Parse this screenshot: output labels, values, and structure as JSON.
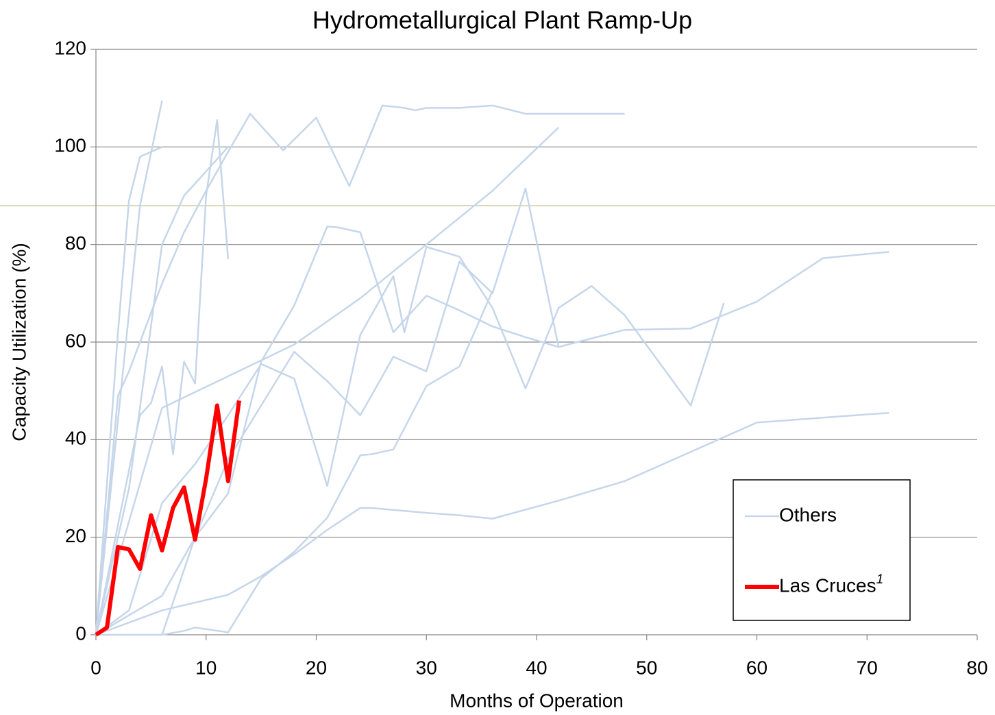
{
  "chart_data": {
    "type": "line",
    "title": "Hydrometallurgical Plant Ramp-Up",
    "x_label": "Months of Operation",
    "y_label": "Capacity Utilization (%)",
    "xlim": [
      0,
      80
    ],
    "xticks": [
      0,
      10,
      20,
      30,
      40,
      50,
      60,
      70,
      80
    ],
    "ylim": [
      0,
      120
    ],
    "yticks": [
      0,
      20,
      40,
      60,
      80,
      100,
      120
    ],
    "grid": true,
    "legend": "lower right",
    "series": [
      {
        "name": "Others",
        "color": "#c6d6ea",
        "x": [
          0,
          2,
          3,
          4,
          6,
          8,
          10,
          12,
          14,
          17,
          20,
          23,
          26,
          28,
          29,
          30,
          33,
          36,
          39,
          48,
          null,
          0,
          2,
          3,
          4,
          6,
          null,
          0,
          4,
          6,
          null,
          0,
          4,
          5,
          6,
          7,
          8,
          9,
          10,
          11,
          12,
          null,
          0,
          3,
          6,
          8,
          12,
          null,
          0,
          6,
          12,
          18,
          24,
          30,
          36,
          42,
          null,
          0,
          3,
          6,
          9,
          12,
          15,
          18,
          21,
          24,
          27,
          28,
          30,
          33,
          36,
          39,
          42,
          45,
          48,
          54,
          57,
          null,
          0,
          6,
          9,
          12,
          15,
          18,
          21,
          22,
          24,
          27,
          30,
          33,
          36,
          39,
          42,
          48,
          54,
          60,
          66,
          72,
          null,
          0,
          6,
          9,
          12,
          15,
          18,
          21,
          24,
          27,
          30,
          33,
          36,
          39,
          42,
          null,
          0,
          6,
          8,
          9,
          12,
          15,
          18,
          21,
          24,
          25,
          27,
          30,
          33,
          36,
          null,
          0,
          3,
          6,
          12,
          15,
          18,
          21,
          24,
          25,
          30,
          33,
          36,
          42,
          48,
          54,
          60,
          66,
          72
        ],
        "values": [
          0,
          49,
          54,
          60,
          72,
          82.5,
          91,
          99,
          106.8,
          99.3,
          106,
          92,
          108.5,
          108,
          107.5,
          108,
          108,
          108.5,
          106.8,
          106.8,
          null,
          0,
          62,
          89,
          98,
          100,
          null,
          0,
          88,
          109.5,
          null,
          0,
          45,
          47.5,
          55,
          37,
          56,
          51.5,
          90,
          105.5,
          77,
          null,
          0,
          30,
          80,
          90,
          100,
          null,
          0,
          46.5,
          53,
          59.5,
          69,
          80,
          91,
          104,
          null,
          0,
          5,
          27,
          35,
          45,
          55.5,
          52.5,
          30.5,
          61.5,
          73.5,
          62,
          79.5,
          77.5,
          67,
          50.5,
          67,
          71.5,
          65.5,
          47,
          68,
          null,
          0,
          8,
          20,
          29,
          56,
          67.5,
          83.7,
          83.5,
          82.5,
          62,
          69.5,
          66.5,
          63.2,
          61,
          59,
          62.5,
          62.8,
          68.3,
          77.2,
          78.5,
          null,
          0,
          0,
          20,
          36,
          47,
          58,
          52,
          45,
          57,
          54,
          76.5,
          70,
          91.5,
          59,
          null,
          0,
          0,
          0.8,
          1.5,
          0.5,
          11.5,
          17,
          24,
          36.8,
          37,
          38,
          51,
          55,
          70.5,
          null,
          0,
          2.5,
          5,
          8.2,
          12,
          16.5,
          21.5,
          26,
          26,
          25,
          24.5,
          23.8,
          27.5,
          31.5,
          37.5,
          43.5,
          44.5,
          45.5
        ]
      },
      {
        "name": "Las Cruces",
        "legend_superscript": "1",
        "color": "#ff0000",
        "x": [
          0,
          1,
          2,
          3,
          4,
          5,
          6,
          7,
          8,
          9,
          10,
          11,
          12,
          13
        ],
        "values": [
          0,
          1.5,
          18,
          17.5,
          13.5,
          24.5,
          17.3,
          26,
          30.2,
          19.5,
          32,
          47,
          31.5,
          48
        ]
      }
    ]
  }
}
